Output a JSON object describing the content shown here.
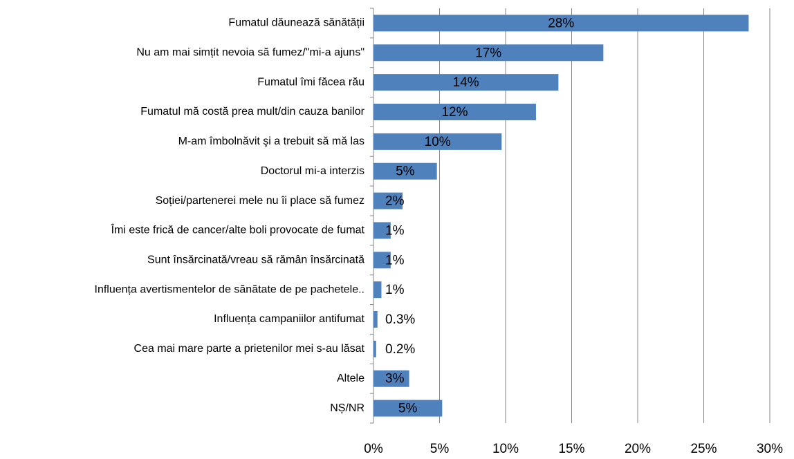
{
  "chart_data": {
    "type": "bar",
    "orientation": "horizontal",
    "categories": [
      "Fumatul dăunează sănătății",
      "Nu am mai simțit nevoia să fumez/\"mi-a ajuns\"",
      "Fumatul îmi făcea rău",
      "Fumatul mă costă prea mult/din cauza banilor",
      "M-am îmbolnăvit şi a trebuit să mă las",
      "Doctorul mi-a interzis",
      "Soției/partenerei mele nu îi place să fumez",
      "Îmi este frică de cancer/alte boli provocate de fumat",
      "Sunt însărcinată/vreau să rămân însărcinată",
      "Influența avertismentelor de sănătate de pe pachetele..",
      "Influența campaniilor antifumat",
      "Cea mai mare parte a prietenilor mei s-au lăsat",
      "Altele",
      "NȘ/NR"
    ],
    "values": [
      28.4,
      17.4,
      14.0,
      12.3,
      9.7,
      4.8,
      2.2,
      1.3,
      1.3,
      0.6,
      0.3,
      0.2,
      2.7,
      5.2
    ],
    "value_labels": [
      "28%",
      "17%",
      "14%",
      "12%",
      "10%",
      "5%",
      "2%",
      "1%",
      "1%",
      "1%",
      "0.3%",
      "0.2%",
      "3%",
      "5%"
    ],
    "color": "#4f81bd",
    "xlim": [
      0,
      30
    ],
    "xticks": [
      {
        "value": 0,
        "label": "0%"
      },
      {
        "value": 5,
        "label": "5%"
      },
      {
        "value": 10,
        "label": "10%"
      },
      {
        "value": 15,
        "label": "15%"
      },
      {
        "value": 20,
        "label": "20%"
      },
      {
        "value": 25,
        "label": "25%"
      },
      {
        "value": 30,
        "label": "30%"
      }
    ],
    "grid": true
  }
}
